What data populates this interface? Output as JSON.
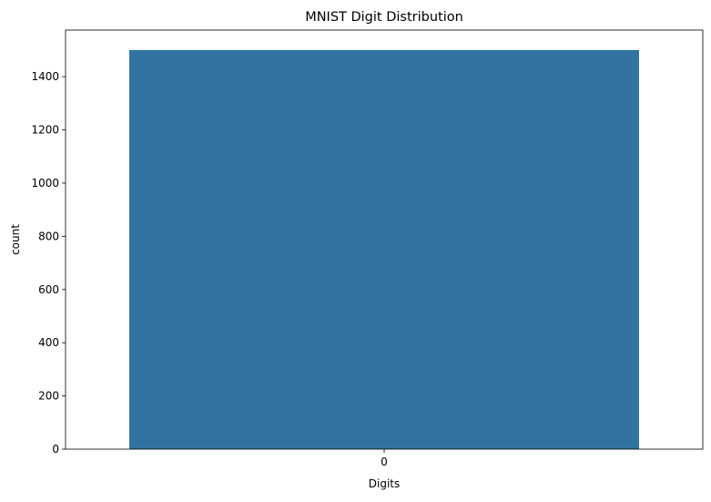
{
  "chart_data": {
    "type": "bar",
    "title": "MNIST Digit Distribution",
    "xlabel": "Digits",
    "ylabel": "count",
    "categories": [
      "0"
    ],
    "values": [
      1500
    ],
    "ylim": [
      0,
      1575
    ],
    "yticks": [
      0,
      200,
      400,
      600,
      800,
      1000,
      1200,
      1400
    ],
    "grid": false,
    "bar_color": "#3274a1"
  }
}
